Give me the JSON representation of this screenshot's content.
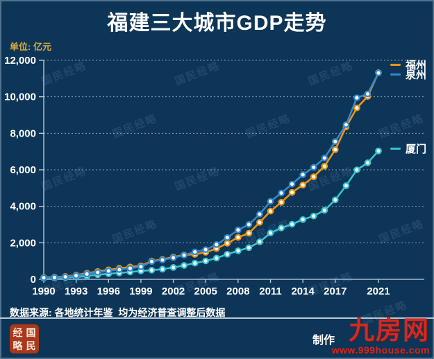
{
  "title": "福建三大城市GDP走势",
  "unit_label": "单位: 亿元",
  "watermark": "国民经略",
  "source_note": "数据来源: 各地统计年鉴  均为经济普查调整后数据",
  "legend": [
    {
      "label": "福州",
      "color": "#ef9412"
    },
    {
      "label": "泉州",
      "color": "#3487cd"
    },
    {
      "label": "厦门",
      "color": "#38c4d2"
    }
  ],
  "footer": {
    "maker_fragment": "制作",
    "brand": "九房网",
    "brand_url": "www.999house.com",
    "seal_chars": [
      "经",
      "国",
      "略",
      "民"
    ]
  },
  "colors": {
    "background": "#0d3557",
    "title_text": "#ffffff",
    "unit_text": "#dcab3f",
    "axis_text": "#ffffff",
    "brand_red": "#cf2b24",
    "seal_red": "#a9381d",
    "fuzhou_line": "#ef9412",
    "quanzhou_line": "#3487cd",
    "xiamen_line": "#38c4d2"
  },
  "chart_data": {
    "type": "line",
    "title": "福建三大城市GDP走势",
    "ylabel": "单位: 亿元",
    "xlabel": "",
    "ylim": [
      0,
      12000
    ],
    "y_ticks": [
      0,
      2000,
      4000,
      6000,
      8000,
      10000,
      12000
    ],
    "grid": "dotted horizontal gridlines, dark navy background",
    "legend_position": "right edge, beside line ends",
    "x_tick_labels": [
      "1990",
      "1993",
      "1996",
      "1999",
      "2002",
      "2005",
      "2008",
      "2011",
      "2014",
      "2017",
      "2021"
    ],
    "x": [
      1990,
      1991,
      1992,
      1993,
      1994,
      1995,
      1996,
      1997,
      1998,
      1999,
      2000,
      2001,
      2002,
      2003,
      2004,
      2005,
      2006,
      2007,
      2008,
      2009,
      2010,
      2011,
      2012,
      2013,
      2014,
      2015,
      2016,
      2017,
      2018,
      2019,
      2020,
      2021
    ],
    "series": [
      {
        "name": "厦门",
        "color": "#38c4d2",
        "values": [
          57,
          70,
          94,
          130,
          180,
          250,
          300,
          350,
          400,
          458,
          502,
          556,
          648,
          760,
          883,
          1006,
          1162,
          1375,
          1560,
          1737,
          2054,
          2535,
          2815,
          3018,
          3273,
          3466,
          3784,
          4351,
          5129,
          5995,
          6384,
          7034
        ]
      },
      {
        "name": "福州",
        "color": "#ef9412",
        "values": [
          102,
          122,
          157,
          228,
          331,
          430,
          520,
          602,
          677,
          737,
          1003,
          1089,
          1218,
          1337,
          1369,
          1482,
          1684,
          1975,
          2296,
          2524,
          3123,
          3734,
          4218,
          4761,
          5169,
          5618,
          6198,
          7104,
          8350,
          9392,
          10020,
          11324
        ]
      },
      {
        "name": "泉州",
        "color": "#3487cd",
        "values": [
          82,
          100,
          134,
          199,
          290,
          380,
          460,
          530,
          600,
          690,
          972,
          1060,
          1180,
          1320,
          1500,
          1626,
          1901,
          2289,
          2705,
          3002,
          3564,
          4270,
          4727,
          5218,
          5733,
          6138,
          6647,
          7548,
          8468,
          9947,
          10159,
          11304
        ]
      }
    ]
  }
}
